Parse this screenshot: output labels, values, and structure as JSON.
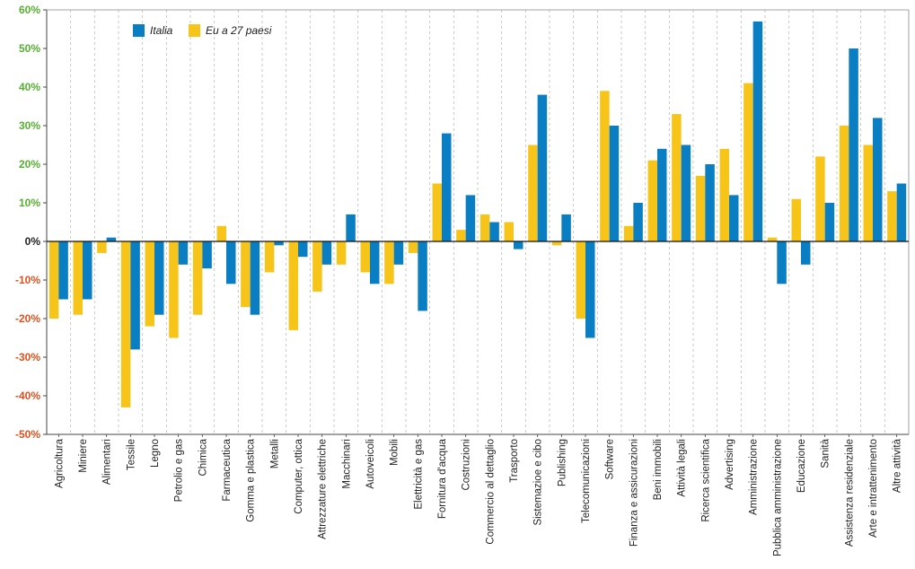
{
  "chart_data": {
    "type": "bar",
    "title": "",
    "xlabel": "",
    "ylabel": "",
    "ylim": [
      -50,
      60
    ],
    "yticks": [
      60,
      50,
      40,
      30,
      20,
      10,
      0,
      -10,
      -20,
      -30,
      -40,
      -50
    ],
    "ytick_labels": [
      "60%",
      "50%",
      "40%",
      "30%",
      "20%",
      "10%",
      "0%",
      "-10%",
      "-20%",
      "-30%",
      "-40%",
      "-50%"
    ],
    "grid": "vertical dashed",
    "legend_position": "top-left",
    "categories": [
      "Agricoltura",
      "Miniere",
      "Alimentari",
      "Tessile",
      "Legno",
      "Petrolio e gas",
      "Chimica",
      "Farmaceutica",
      "Gomma e plastica",
      "Metalli",
      "Computer, ottica",
      "Attrezzature elettriche",
      "Macchinari",
      "Autoveicoli",
      "Mobili",
      "Elettricità e gas",
      "Fornitura d'acqua",
      "Costruzioni",
      "Commercio al dettaglio",
      "Trasporto",
      "Sistemazioe e cibo",
      "Publishing",
      "Telecomunicazioni",
      "Software",
      "Finanza e assicurazioni",
      "Beni immobili",
      "Attività legali",
      "Ricerca scientifica",
      "Advertising",
      "Amministrazione",
      "Pubblica amministrazione",
      "Educazione",
      "Sanità",
      "Assistenza residenziale",
      "Arte e intrattenimento",
      "Altre attività"
    ],
    "series": [
      {
        "name": "Italia",
        "color": "#0a7ec2",
        "values": [
          -15,
          -15,
          1,
          -28,
          -19,
          -6,
          -7,
          -11,
          -19,
          -1,
          -4,
          -6,
          7,
          -11,
          -6,
          -18,
          28,
          12,
          5,
          -2,
          38,
          7,
          -25,
          30,
          10,
          24,
          25,
          20,
          12,
          57,
          -11,
          -6,
          10,
          50,
          32,
          15
        ]
      },
      {
        "name": "Eu a 27 paesi",
        "color": "#f7c51a",
        "values": [
          -20,
          -19,
          -3,
          -43,
          -22,
          -25,
          -19,
          4,
          -17,
          -8,
          -23,
          -13,
          -6,
          -8,
          -11,
          -3,
          15,
          3,
          7,
          5,
          25,
          -1,
          -20,
          39,
          4,
          21,
          33,
          17,
          24,
          41,
          1,
          11,
          22,
          30,
          25,
          13
        ]
      }
    ],
    "tick_colors": {
      "positive": "#55b030",
      "zero": "#222222",
      "negative": "#e0501e"
    }
  }
}
